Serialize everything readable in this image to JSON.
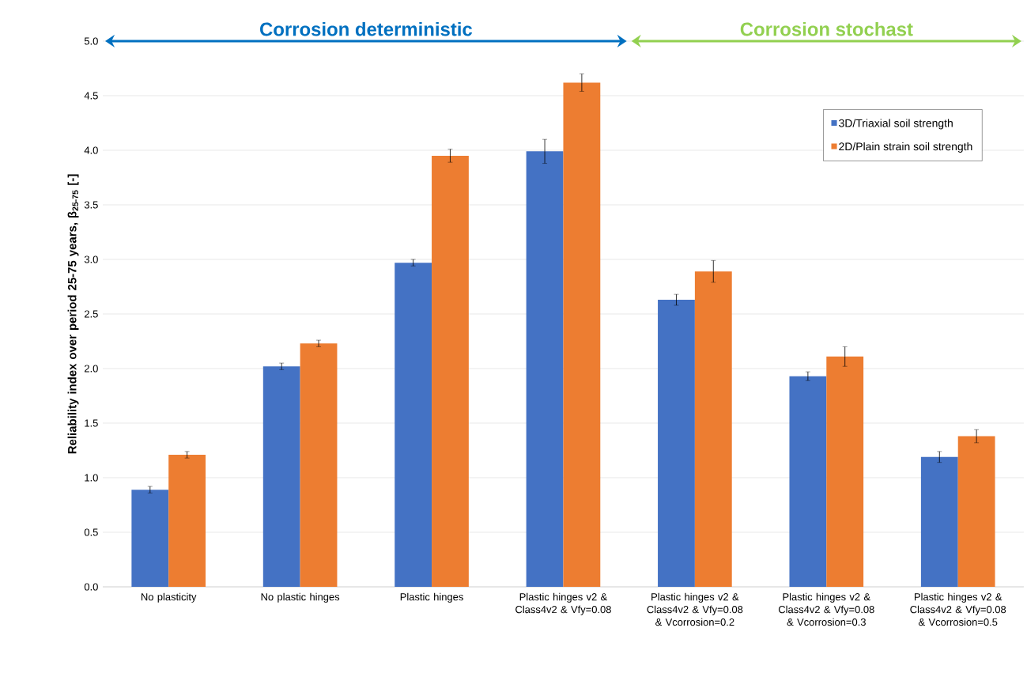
{
  "chart_data": {
    "type": "bar",
    "ylabel": "Reliability index over period 25-75 years, β$_{25-75}$ [-]",
    "categories": [
      "No plasticity",
      "No plastic hinges",
      "Plastic hinges",
      "Plastic hinges v2 & Class4v2 & Vfy=0.08",
      "Plastic hinges v2 & Class4v2 & Vfy=0.08 & Vcorrosion=0.2",
      "Plastic hinges v2 & Class4v2 & Vfy=0.08 & Vcorrosion=0.3",
      "Plastic hinges v2 & Class4v2 & Vfy=0.08 & Vcorrosion=0.5"
    ],
    "series": [
      {
        "name": "3D/Triaxial soil strength",
        "color": "#4472c4",
        "values": [
          0.89,
          2.02,
          2.97,
          3.99,
          2.63,
          1.93,
          1.19
        ],
        "errors": [
          0.03,
          0.03,
          0.03,
          0.11,
          0.05,
          0.04,
          0.05
        ]
      },
      {
        "name": "2D/Plain strain soil strength",
        "color": "#ed7d31",
        "values": [
          1.21,
          2.23,
          3.95,
          4.62,
          2.89,
          2.11,
          1.38
        ],
        "errors": [
          0.03,
          0.03,
          0.06,
          0.08,
          0.1,
          0.09,
          0.06
        ]
      }
    ],
    "ylim": [
      0,
      5
    ],
    "yticks": [
      {
        "value": 0,
        "label": "0.0"
      },
      {
        "value": 0.5,
        "label": "0.5"
      },
      {
        "value": 1,
        "label": "1.0"
      },
      {
        "value": 1.5,
        "label": "1.5"
      },
      {
        "value": 2,
        "label": "2.0"
      },
      {
        "value": 2.5,
        "label": "2.5"
      },
      {
        "value": 3,
        "label": "3.0"
      },
      {
        "value": 3.5,
        "label": "3.5"
      },
      {
        "value": 4,
        "label": "4.0"
      },
      {
        "value": 4.5,
        "label": "4.5"
      },
      {
        "value": 5,
        "label": "5.0"
      }
    ],
    "grid": "y",
    "legend": "top right",
    "annotations": [
      "Corrosion deterministic",
      "Corrosion stochast"
    ]
  }
}
